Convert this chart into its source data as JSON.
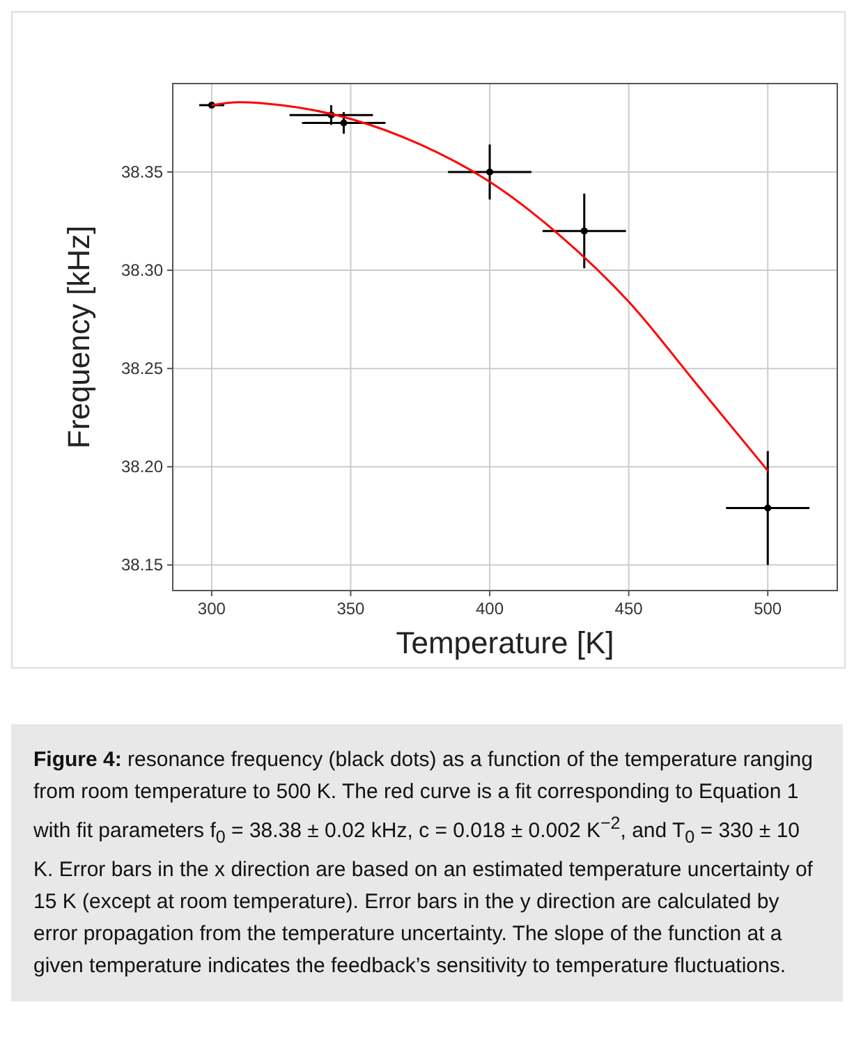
{
  "chart_data": {
    "type": "scatter",
    "xlabel": "Temperature [K]",
    "ylabel": "Frequency [kHz]",
    "xlim": [
      286,
      525
    ],
    "ylim": [
      38.137,
      38.395
    ],
    "xticks": [
      300,
      350,
      400,
      450,
      500
    ],
    "yticks": [
      38.15,
      {
        "value": 38.2,
        "label": "38.20"
      },
      38.25,
      {
        "value": 38.3,
        "label": "38.30"
      },
      38.35
    ],
    "grid": true,
    "marker": "circle",
    "series": [
      {
        "color": "#000000",
        "x": [
          300,
          343,
          347.5,
          400,
          434,
          500
        ],
        "values": [
          38.384,
          38.379,
          38.375,
          38.35,
          38.32,
          38.179
        ],
        "errors": [
          null,
          0.005,
          0.0055,
          0.014,
          0.019,
          0.029
        ],
        "xerrors": [
          4.5,
          15,
          15,
          15,
          15,
          15
        ]
      },
      {
        "type": "line",
        "color": "#ff0000",
        "marker": "none",
        "line_style": "solid",
        "x": [
          300,
          310,
          325,
          350,
          375,
          400,
          425,
          450,
          475,
          500
        ],
        "values": [
          38.384,
          38.3855,
          38.384,
          38.377,
          38.364,
          38.345,
          38.318,
          38.284,
          38.241,
          38.198
        ]
      }
    ],
    "annotations": [
      "Figure 4:",
      "resonance frequency (black dots) as a function of the temperature ranging from room temperature to 500 K. The red curve is a fit corresponding to Equation 1 with fit parameters f$_{0}$ = 38.38 ± 0.02 kHz, c = 0.018 ± 0.002 K$^{−2}$, and T$_{0}$ = 330 ± 10 K. Error bars in the x direction are based on an estimated temperature uncertainty of 15 K (except at room temperature). Error bars in the y direction are calculated by error propagation from the temperature uncertainty. The slope of the function at a given temperature indicates the feedback’s sensitivity to temperature fluctuations."
    ]
  }
}
